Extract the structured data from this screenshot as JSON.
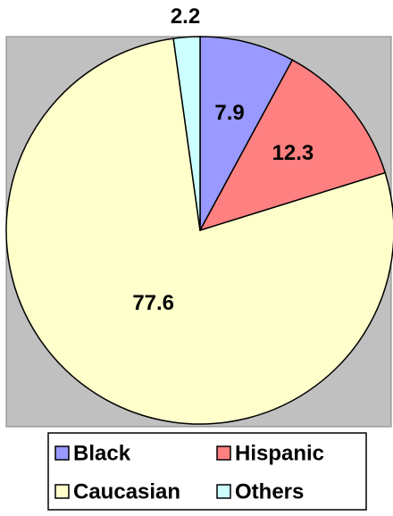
{
  "chart_data": {
    "type": "pie",
    "categories": [
      "Black",
      "Hispanic",
      "Caucasian",
      "Others"
    ],
    "values": [
      7.9,
      12.3,
      77.6,
      2.2
    ],
    "colors": [
      "#9999ff",
      "#ff8080",
      "#ffffcc",
      "#ccffff"
    ],
    "legend": "bottom"
  }
}
